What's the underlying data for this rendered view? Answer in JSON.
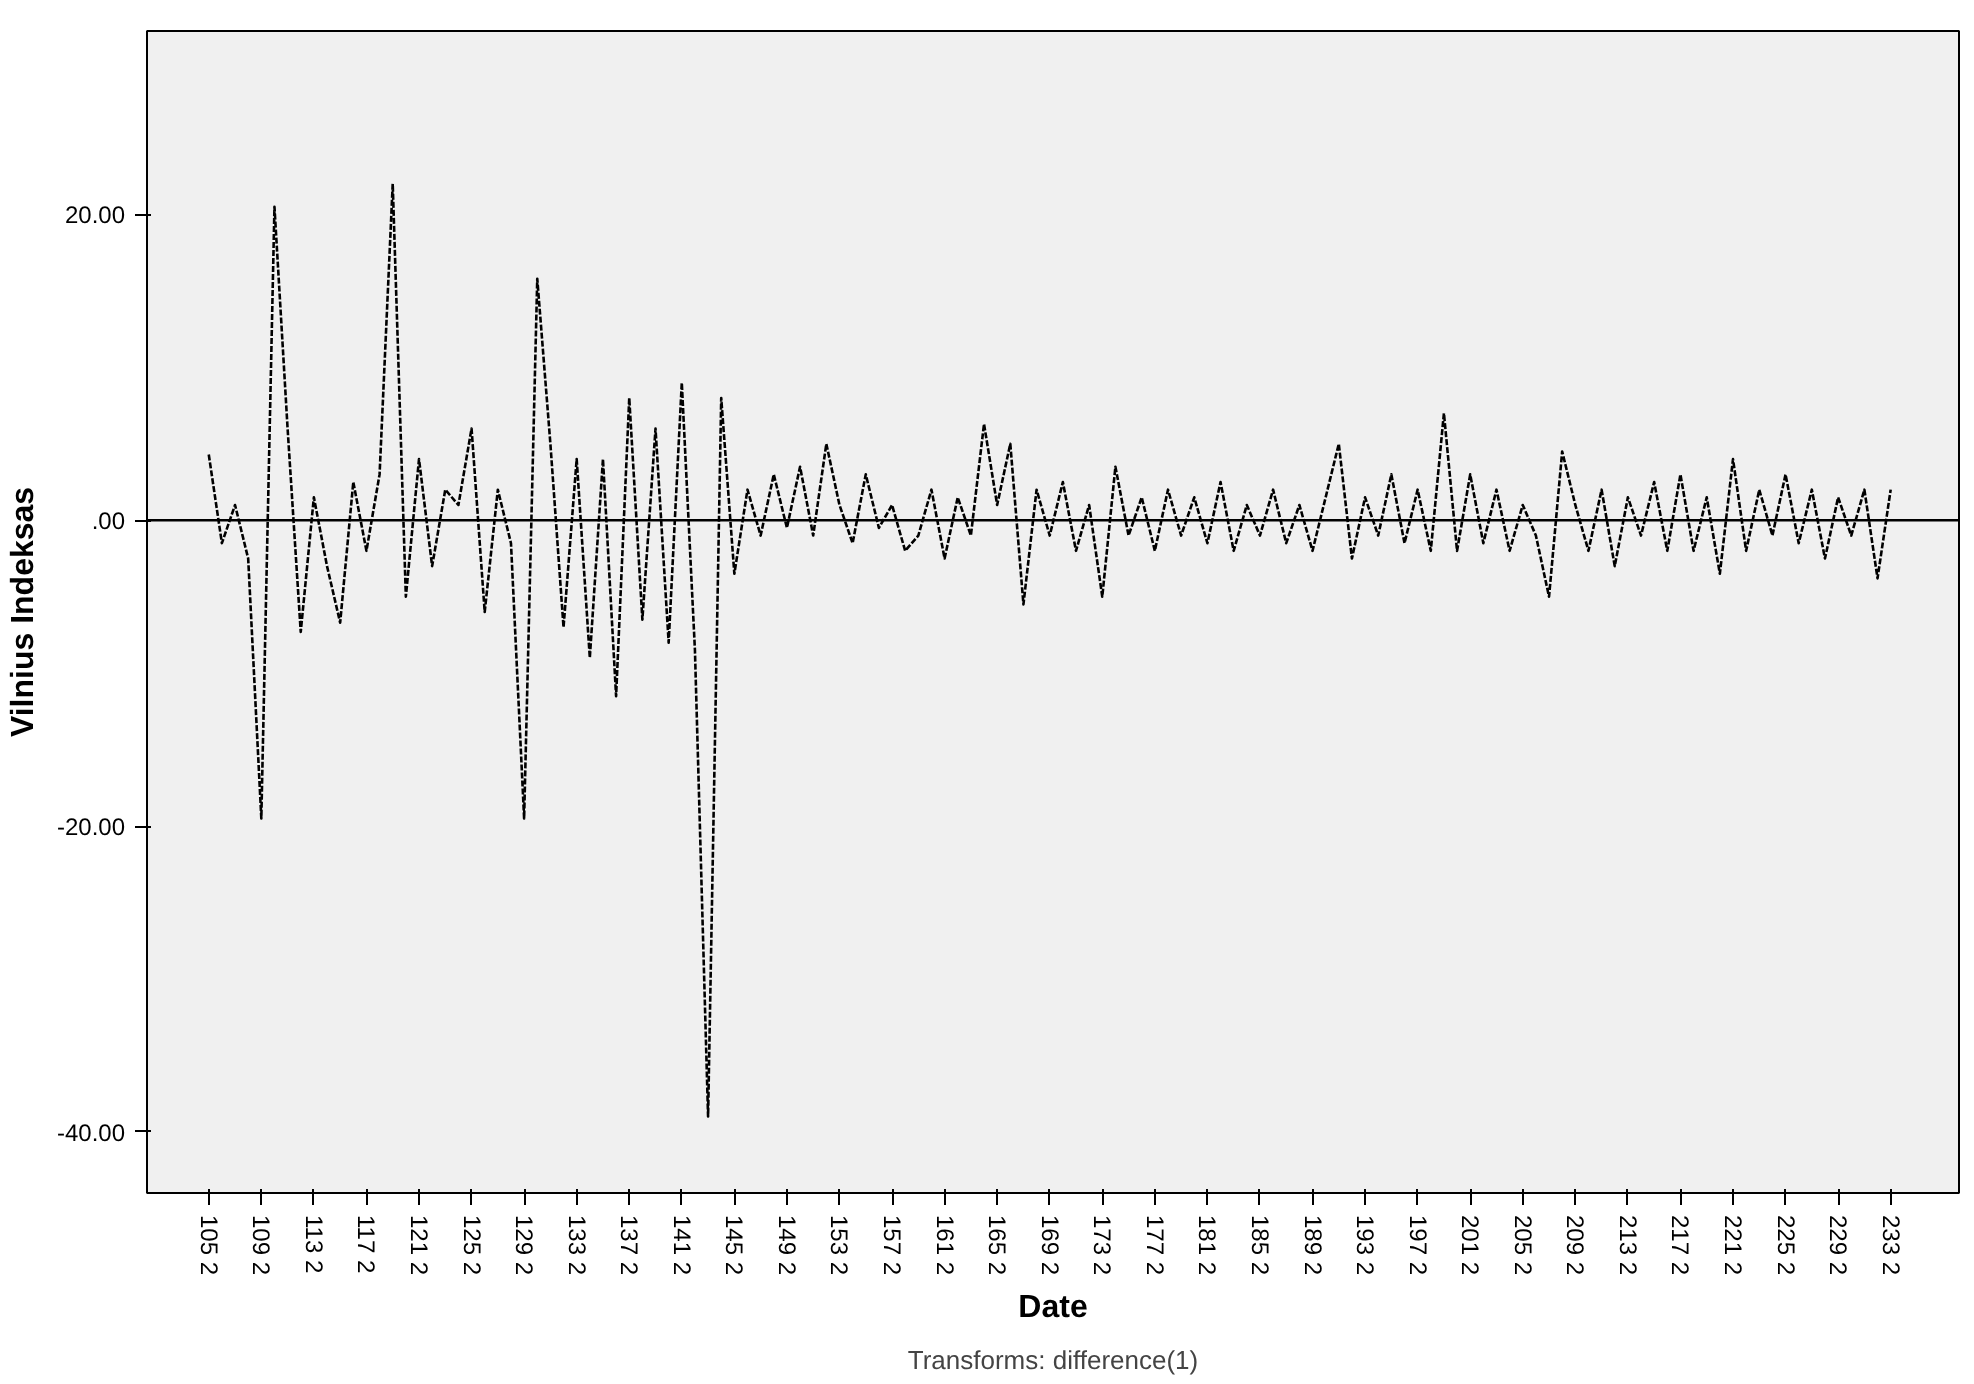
{
  "chart_data": {
    "type": "line",
    "xlabel": "Date",
    "ylabel": "Vilnius Indeksas",
    "annotations": [
      "Transforms: difference(1)"
    ],
    "categories": [
      "105 2",
      null,
      null,
      null,
      "109 2",
      null,
      null,
      null,
      "113 2",
      null,
      null,
      null,
      "117 2",
      null,
      null,
      null,
      "121 2",
      null,
      null,
      null,
      "125 2",
      null,
      null,
      null,
      "129 2",
      null,
      null,
      null,
      "133 2",
      null,
      null,
      null,
      "137 2",
      null,
      null,
      null,
      "141 2",
      null,
      null,
      null,
      "145 2",
      null,
      null,
      null,
      "149 2",
      null,
      null,
      null,
      "153 2",
      null,
      null,
      null,
      "157 2",
      null,
      null,
      null,
      "161 2",
      null,
      null,
      null,
      "165 2",
      null,
      null,
      null,
      "169 2",
      null,
      null,
      null,
      "173 2",
      null,
      null,
      null,
      "177 2",
      null,
      null,
      null,
      "181 2",
      null,
      null,
      null,
      "185 2",
      null,
      null,
      null,
      "189 2",
      null,
      null,
      null,
      "193 2",
      null,
      null,
      null,
      "197 2",
      null,
      null,
      null,
      "201 2",
      null,
      null,
      null,
      "205 2",
      null,
      null,
      null,
      "209 2",
      null,
      null,
      null,
      "213 2",
      null,
      null,
      null,
      "217 2",
      null,
      null,
      null,
      "221 2",
      null,
      null,
      null,
      "225 2",
      null,
      null,
      null,
      "229 2",
      null,
      null,
      null,
      "233 2"
    ],
    "series": [
      {
        "color": "#000000",
        "values": [
          4.3,
          -1.5,
          1,
          -2.5,
          -19.5,
          20.5,
          6,
          -7.3,
          1.5,
          -3,
          -6.7,
          2.5,
          -2,
          3,
          22,
          -5,
          4,
          -3,
          2,
          1,
          6,
          -6,
          2,
          -1.5,
          -19.5,
          15.8,
          5,
          -7,
          4,
          -9,
          4,
          -11.5,
          8,
          -6.5,
          6,
          -8,
          9,
          -8.5,
          -39,
          8,
          -3.5,
          2,
          -1,
          3,
          -0.5,
          3.5,
          -1,
          5,
          1,
          -1.5,
          3,
          -0.5,
          1,
          -2,
          -1,
          2,
          -2.5,
          1.5,
          -1,
          6.3,
          1,
          5,
          -5.5,
          2,
          -1,
          2.5,
          -2,
          1,
          -5,
          3.5,
          -1,
          1.5,
          -2,
          2,
          -1,
          1.5,
          -1.5,
          2.5,
          -2,
          1,
          -1,
          2,
          -1.5,
          1,
          -2,
          1.5,
          5,
          -2.5,
          1.5,
          -1,
          3,
          -1.5,
          2,
          -2,
          7,
          -2,
          3,
          -1.5,
          2,
          -2,
          1,
          -1,
          -5,
          4.5,
          1,
          -2,
          2,
          -3,
          1.5,
          -1,
          2.5,
          -2,
          3,
          -2,
          1.5,
          -3.5,
          4,
          -2,
          2,
          -1,
          3,
          -1.5,
          2,
          -2.5,
          1.5,
          -1,
          2,
          -3.8,
          2
        ]
      }
    ],
    "ylim": [
      -44,
      32
    ],
    "yticks": [
      {
        "value": -40,
        "label": "-40.00"
      },
      {
        "value": -20,
        "label": "-20.00"
      },
      {
        "value": 0,
        "label": ".00"
      },
      {
        "value": 20,
        "label": "20.00"
      }
    ],
    "ref_lines": [
      {
        "axis": "y",
        "value": 0,
        "color": "#000000",
        "line_style": "solid"
      }
    ],
    "line_style": "dashed",
    "marker": "none",
    "grid": false
  }
}
